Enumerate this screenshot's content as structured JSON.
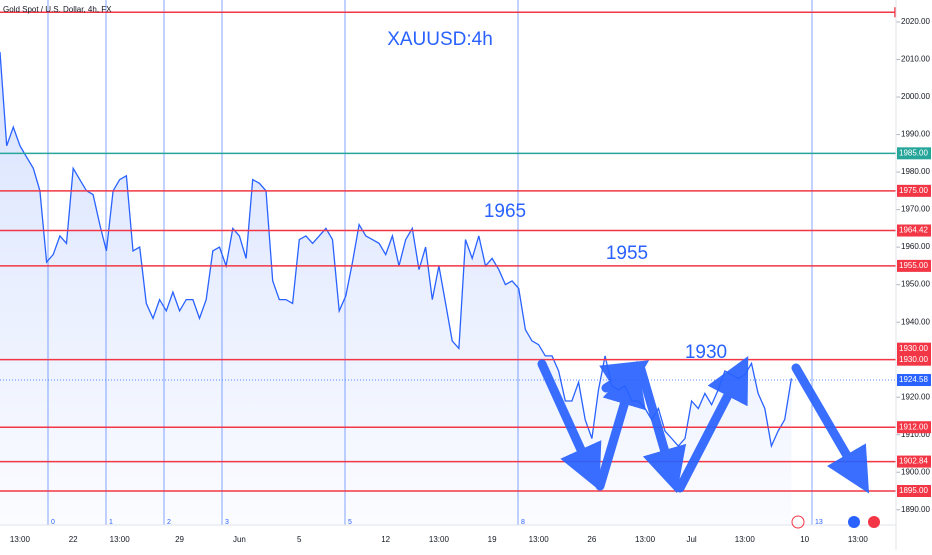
{
  "header": "Gold Spot / U.S. Dollar, 4h, FX",
  "chart_data": {
    "type": "line",
    "title": "XAUUSD:4h",
    "annotations": [
      "1965",
      "1955",
      "1930"
    ],
    "categories": [
      null,
      null,
      null,
      "13:00",
      null,
      null,
      null,
      null,
      null,
      null,
      null,
      "22",
      null,
      null,
      null,
      null,
      null,
      null,
      "13:00",
      null,
      null,
      null,
      null,
      null,
      null,
      null,
      null,
      "29",
      null,
      null,
      null,
      null,
      null,
      null,
      null,
      null,
      "Jun",
      null,
      null,
      null,
      null,
      null,
      null,
      null,
      null,
      "5",
      null,
      null,
      null,
      null,
      null,
      null,
      null,
      null,
      null,
      null,
      null,
      null,
      "12",
      null,
      null,
      null,
      null,
      null,
      null,
      null,
      "13:00",
      null,
      null,
      null,
      null,
      null,
      null,
      null,
      "19",
      null,
      null,
      null,
      null,
      null,
      null,
      "13:00",
      null,
      null,
      null,
      null,
      null,
      null,
      null,
      "26",
      null,
      null,
      null,
      null,
      null,
      null,
      null,
      "13:00",
      null,
      null,
      null,
      null,
      null,
      null,
      "Jul",
      null,
      null,
      null,
      null,
      null,
      null,
      null,
      "13:00",
      null,
      null,
      null,
      null,
      null,
      null,
      null,
      null,
      "10",
      null,
      null,
      null,
      null,
      null,
      null,
      null,
      "13:00",
      null,
      null
    ],
    "series": [
      {
        "name": "Gold Spot / U.S. Dollar",
        "color": "#2962ff",
        "values": [
          2012,
          1987,
          1992,
          1987,
          1984,
          1981,
          1975,
          1956,
          1958,
          1963,
          1961,
          1981,
          1978,
          1975,
          1974,
          1966,
          1959,
          1975,
          1978,
          1979,
          1959,
          1960,
          1945,
          1941,
          1946,
          1943,
          1948,
          1943,
          1946,
          1946,
          1941,
          1946,
          1959,
          1960,
          1955,
          1965,
          1963,
          1957,
          1978,
          1977,
          1975,
          1951,
          1946,
          1946,
          1945,
          1962,
          1963,
          1961,
          1963,
          1965,
          1962,
          1943,
          1947,
          1956,
          1966,
          1963,
          1962,
          1961,
          1958,
          1963,
          1955,
          1962,
          1965,
          1954,
          1960,
          1946,
          1955,
          1945,
          1935,
          1933,
          1962,
          1957,
          1963,
          1955,
          1957,
          1954,
          1950,
          1951,
          1949,
          1938,
          1935,
          1934,
          1931,
          1931,
          1927,
          1919,
          1919,
          1924,
          1914,
          1909,
          1922,
          1931,
          1923,
          1922,
          1923,
          1919,
          1919,
          1917,
          1914,
          1917,
          1911,
          1909,
          1907,
          1909,
          1919,
          1917,
          1921,
          1918,
          1922,
          1927,
          1926,
          1925,
          1926,
          1929,
          1921,
          1917,
          1907,
          1911,
          1914,
          1925,
          null,
          null,
          null,
          null,
          null,
          null,
          null,
          null,
          null,
          null,
          null,
          null
        ]
      }
    ],
    "ylim": [
      1886,
      2024
    ],
    "yticks": [
      {
        "value": 2020,
        "label": "2020.00"
      },
      {
        "value": 2010,
        "label": "2010.00"
      },
      {
        "value": 2000,
        "label": "2000.00"
      },
      {
        "value": 1990,
        "label": "1990.00"
      },
      {
        "value": 1980,
        "label": "1980.00"
      },
      {
        "value": 1970,
        "label": "1970.00"
      },
      {
        "value": 1960,
        "label": "1960.00"
      },
      {
        "value": 1950,
        "label": "1950.00"
      },
      {
        "value": 1940,
        "label": "1940.00"
      },
      {
        "value": 1920,
        "label": "1920.00"
      },
      {
        "value": 1910,
        "label": "1910.00"
      },
      {
        "value": 1900,
        "label": "1900.00"
      },
      {
        "value": 1890,
        "label": "1890.00"
      }
    ],
    "levels": [
      {
        "value": 2022.6,
        "color": "#f23645"
      },
      {
        "value": 1985,
        "label": "1985.00",
        "color": "#26a69a"
      },
      {
        "value": 1975,
        "label": "1975.00",
        "color": "#f23645"
      },
      {
        "value": 1964.42,
        "label": "1964.42",
        "color": "#f23645"
      },
      {
        "value": 1955,
        "label": "1955.00",
        "color": "#f23645"
      },
      {
        "value": 1930,
        "label": "1930.00",
        "color": "#f23645"
      },
      {
        "value": 1912,
        "label": "1912.00",
        "color": "#f23645"
      },
      {
        "value": 1902.84,
        "label": "1902.84",
        "color": "#f23645"
      },
      {
        "value": 1895,
        "label": "1895.00",
        "color": "#f23645"
      }
    ],
    "current_price": {
      "value": 1924.58,
      "label": "1924.58",
      "color": "#2962ff"
    },
    "time_zones": [
      "0",
      "1",
      "2",
      "3",
      "5",
      "8",
      "13"
    ]
  }
}
